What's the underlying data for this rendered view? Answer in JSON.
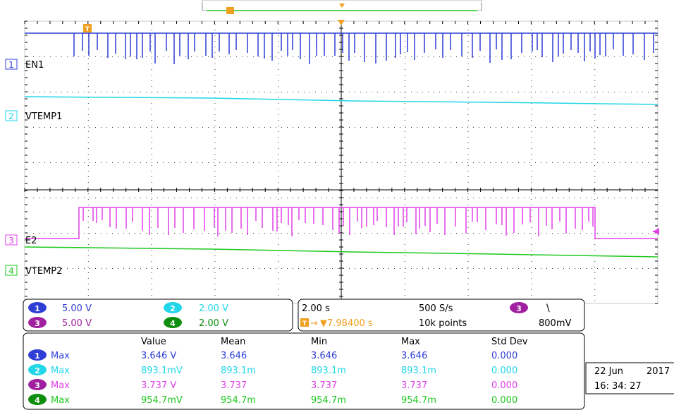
{
  "colors": {
    "ch1": "#2f3fd6",
    "ch2": "#20d6e8",
    "ch3": "#e040e8",
    "ch4": "#1ec81e",
    "trigger": "#f0a020",
    "grid": "#000000",
    "frame": "#c8c8c8"
  },
  "trigger": {
    "marker": "T"
  },
  "channels": [
    {
      "number": "1",
      "label": "EN1"
    },
    {
      "number": "2",
      "label": "VTEMP1"
    },
    {
      "number": "3",
      "label": "E2"
    },
    {
      "number": "4",
      "label": "VTEMP2"
    }
  ],
  "scale_panel": {
    "ch1_scale": "5.00 V",
    "ch2_scale": "2.00 V",
    "ch3_scale": "5.00 V",
    "ch4_scale": "2.00 V"
  },
  "timebase_panel": {
    "time_div": "2.00 s",
    "sample_rate": "500 S/s",
    "trigger_source": "3",
    "trigger_slope": "\\",
    "trigger_position": "▼7.98400 s",
    "record_length": "10k points",
    "trigger_level": "800mV"
  },
  "measurements": {
    "headers": [
      "Value",
      "Mean",
      "Min",
      "Max",
      "Std Dev"
    ],
    "rows": [
      {
        "ch": "1",
        "type": "Max",
        "value": "3.646 V",
        "mean": "3.646",
        "min": "3.646",
        "max": "3.646",
        "std": "0.000"
      },
      {
        "ch": "2",
        "type": "Max",
        "value": "893.1mV",
        "mean": "893.1m",
        "min": "893.1m",
        "max": "893.1m",
        "std": "0.000"
      },
      {
        "ch": "3",
        "type": "Max",
        "value": "3.737 V",
        "mean": "3.737",
        "min": "3.737",
        "max": "3.737",
        "std": "0.000"
      },
      {
        "ch": "4",
        "type": "Max",
        "value": "954.7mV",
        "mean": "954.7m",
        "min": "954.7m",
        "max": "954.7m",
        "std": "0.000"
      }
    ]
  },
  "datetime": {
    "date": "22 Jun",
    "year": "2017",
    "time": "16: 34: 27"
  }
}
